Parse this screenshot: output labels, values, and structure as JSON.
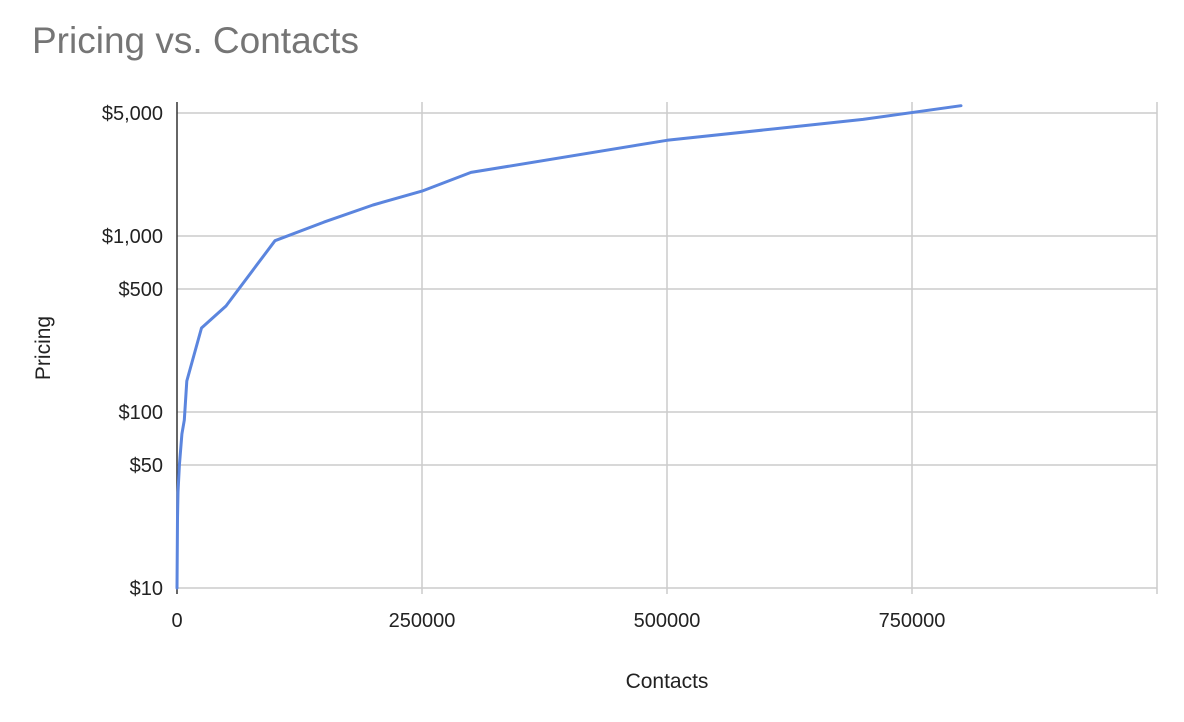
{
  "chart_data": {
    "type": "line",
    "title": "Pricing vs. Contacts",
    "xlabel": "Contacts",
    "ylabel": "Pricing",
    "xlim": [
      0,
      1000000
    ],
    "ylim": [
      10,
      5500
    ],
    "y_scale": "log",
    "grid": true,
    "legend": "none",
    "x_ticks": [
      0,
      250000,
      500000,
      750000
    ],
    "x_tick_labels": [
      "0",
      "250000",
      "500000",
      "750000"
    ],
    "y_ticks": [
      10,
      50,
      100,
      500,
      1000,
      5000
    ],
    "y_tick_labels": [
      "$10",
      "$50",
      "$100",
      "$500",
      "$1,000",
      "$5,000"
    ],
    "series": [
      {
        "color": "#5b85de",
        "points": [
          {
            "x": 0,
            "y": 10
          },
          {
            "x": 500,
            "y": 25
          },
          {
            "x": 1000,
            "y": 35
          },
          {
            "x": 2500,
            "y": 50
          },
          {
            "x": 5000,
            "y": 75
          },
          {
            "x": 7500,
            "y": 90
          },
          {
            "x": 10000,
            "y": 150
          },
          {
            "x": 25000,
            "y": 300
          },
          {
            "x": 50000,
            "y": 400
          },
          {
            "x": 100000,
            "y": 940
          },
          {
            "x": 150000,
            "y": 1200
          },
          {
            "x": 200000,
            "y": 1500
          },
          {
            "x": 250000,
            "y": 1800
          },
          {
            "x": 300000,
            "y": 2300
          },
          {
            "x": 500000,
            "y": 3500
          },
          {
            "x": 700000,
            "y": 4600
          },
          {
            "x": 800000,
            "y": 5500
          }
        ]
      }
    ]
  }
}
